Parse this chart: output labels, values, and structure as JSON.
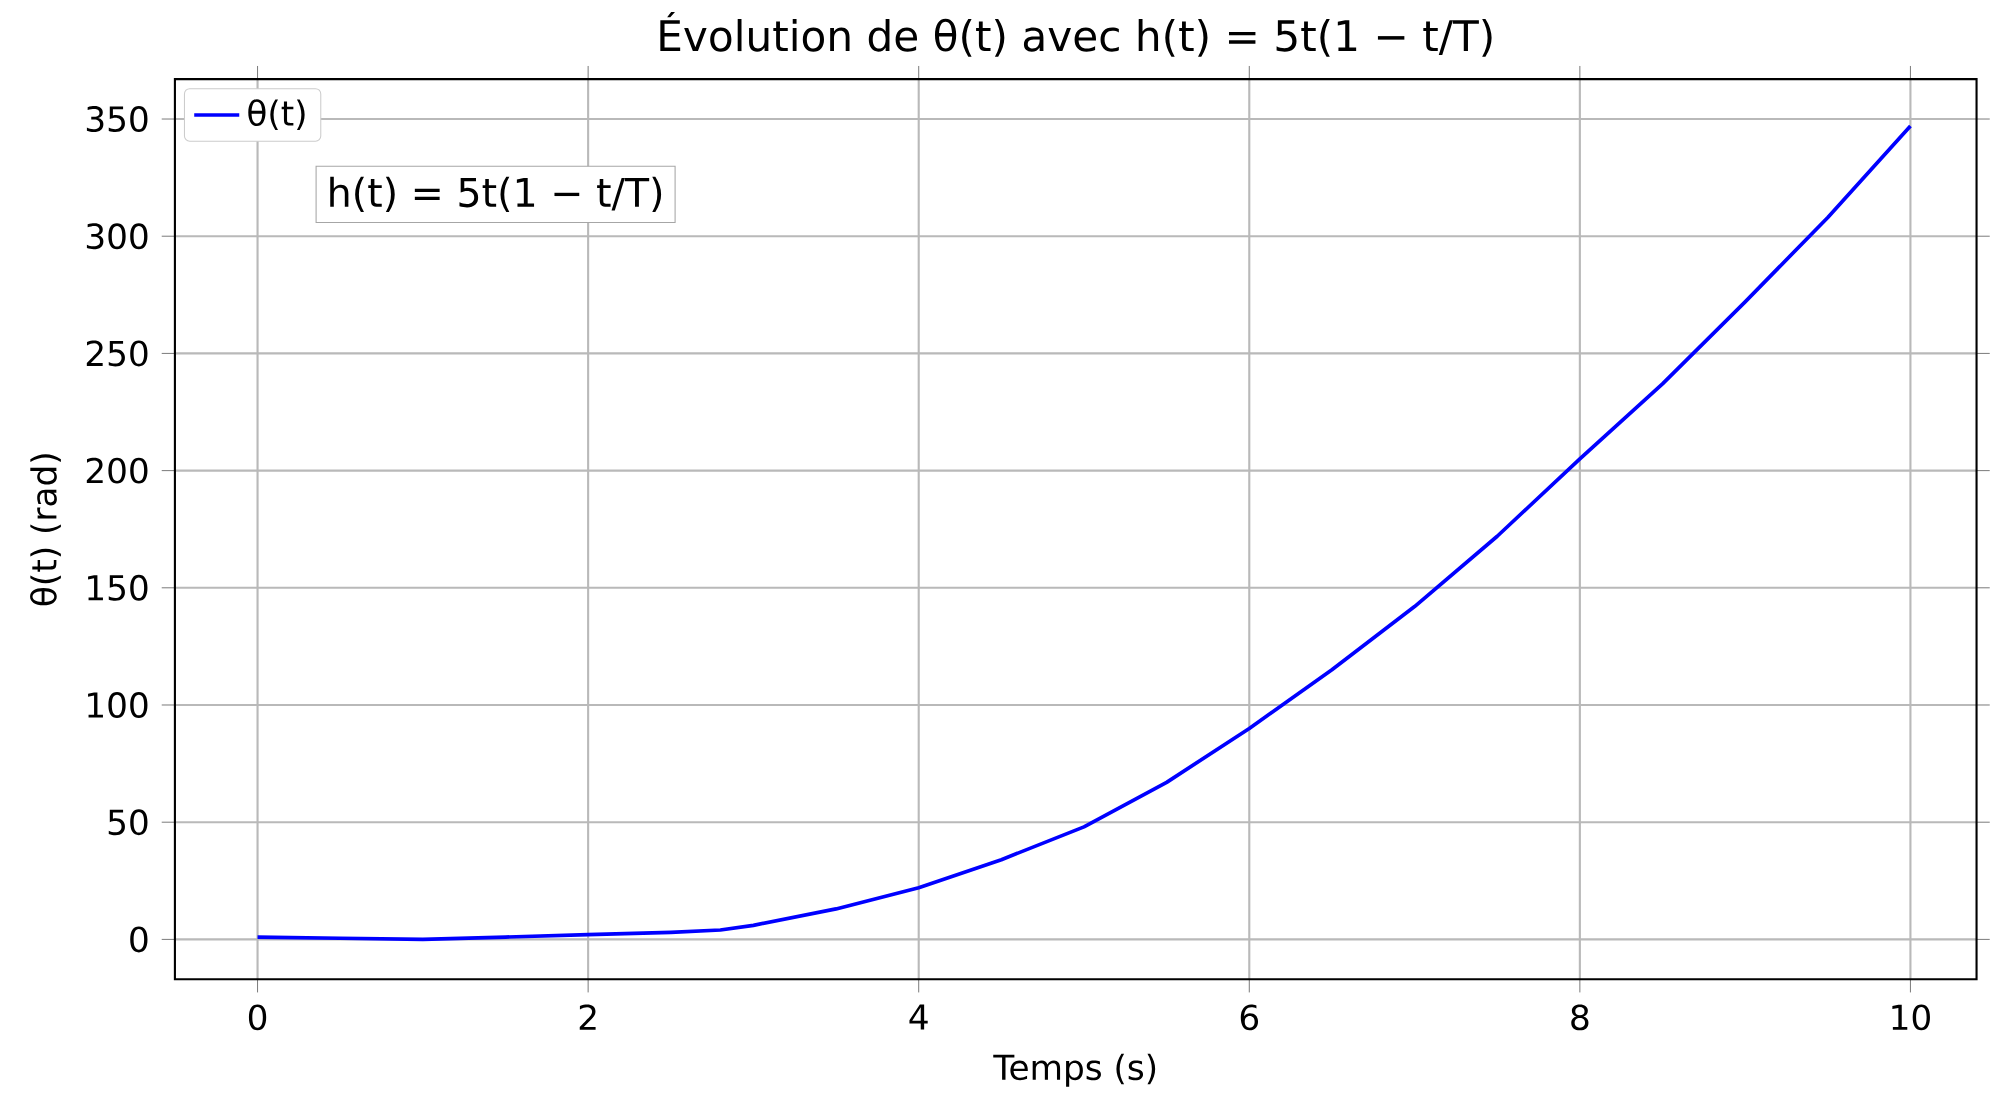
{
  "chart_data": {
    "type": "line",
    "title": "Évolution de θ(t) avec h(t) = 5t(1 − t/T)",
    "xlabel": "Temps (s)",
    "ylabel": "θ(t) (rad)",
    "annotations": [
      "h(t) = 5t(1 − t/T)"
    ],
    "x": [
      0,
      0.5,
      1,
      1.5,
      2,
      2.5,
      2.8,
      3,
      3.5,
      4,
      4.5,
      5,
      5.5,
      6,
      6.5,
      7,
      7.5,
      8,
      8.5,
      9,
      9.5,
      10
    ],
    "series": [
      {
        "name": "θ(t)",
        "color": "#0000ff",
        "values": [
          1,
          0.5,
          0,
          1,
          2,
          3,
          4,
          6,
          13,
          22,
          34,
          48,
          67,
          90,
          115,
          142,
          172,
          205,
          237,
          272,
          308,
          347
        ]
      }
    ],
    "xlim": [
      -0.5,
      10.4
    ],
    "ylim": [
      -17,
      367
    ],
    "xticks": [
      0,
      2,
      4,
      6,
      8,
      10
    ],
    "yticks": [
      0,
      50,
      100,
      150,
      200,
      250,
      300,
      350
    ],
    "grid": true,
    "legend": "top left",
    "marker": "none",
    "line_style": "solid"
  }
}
